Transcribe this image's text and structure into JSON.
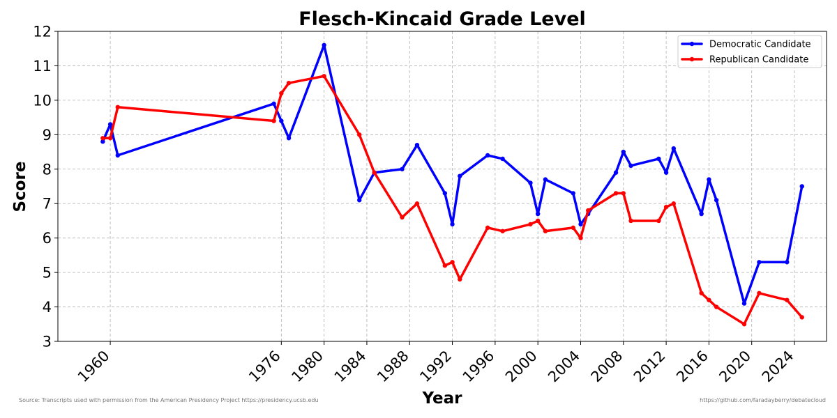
{
  "footer": {
    "source": "Source: Transcripts used with permission from the American Presidency Project https://presidency.ucsb.edu",
    "repo": "https://github.com/faradayberry/debatecloud"
  },
  "chart_data": {
    "type": "line",
    "title": "Flesch-Kincaid Grade Level",
    "xlabel": "Year",
    "ylabel": "Score",
    "xlim": [
      1955.1,
      2027.0
    ],
    "ylim": [
      3,
      12
    ],
    "xticks": [
      1960,
      1976,
      1980,
      1984,
      1988,
      1992,
      1996,
      2000,
      2004,
      2008,
      2012,
      2016,
      2020,
      2024
    ],
    "yticks": [
      3,
      4,
      5,
      6,
      7,
      8,
      9,
      10,
      11,
      12
    ],
    "grid": true,
    "legend_position": "top-right",
    "series": [
      {
        "name": "Democratic Candidate",
        "color": "#0000ff",
        "points": [
          [
            1959.3,
            8.8
          ],
          [
            1960.0,
            9.3
          ],
          [
            1960.7,
            8.4
          ],
          [
            1975.3,
            9.9
          ],
          [
            1976.0,
            9.4
          ],
          [
            1976.7,
            8.9
          ],
          [
            1980.0,
            11.6
          ],
          [
            1983.3,
            7.1
          ],
          [
            1984.7,
            7.9
          ],
          [
            1987.3,
            8.0
          ],
          [
            1988.7,
            8.7
          ],
          [
            1991.3,
            7.3
          ],
          [
            1992.0,
            6.4
          ],
          [
            1992.7,
            7.8
          ],
          [
            1995.3,
            8.4
          ],
          [
            1996.7,
            8.3
          ],
          [
            1999.3,
            7.6
          ],
          [
            2000.0,
            6.7
          ],
          [
            2000.7,
            7.7
          ],
          [
            2003.3,
            7.3
          ],
          [
            2004.0,
            6.4
          ],
          [
            2004.7,
            6.7
          ],
          [
            2007.3,
            7.9
          ],
          [
            2008.0,
            8.5
          ],
          [
            2008.7,
            8.1
          ],
          [
            2011.3,
            8.3
          ],
          [
            2012.0,
            7.9
          ],
          [
            2012.7,
            8.6
          ],
          [
            2015.3,
            6.7
          ],
          [
            2016.0,
            7.7
          ],
          [
            2016.7,
            7.1
          ],
          [
            2019.3,
            4.1
          ],
          [
            2020.7,
            5.3
          ],
          [
            2023.3,
            5.3
          ],
          [
            2024.7,
            7.5
          ]
        ]
      },
      {
        "name": "Republican Candidate",
        "color": "#ff0000",
        "points": [
          [
            1959.3,
            8.9
          ],
          [
            1960.0,
            8.9
          ],
          [
            1960.7,
            9.8
          ],
          [
            1975.3,
            9.4
          ],
          [
            1976.0,
            10.2
          ],
          [
            1976.7,
            10.5
          ],
          [
            1980.0,
            10.7
          ],
          [
            1983.3,
            9.0
          ],
          [
            1984.7,
            7.9
          ],
          [
            1987.3,
            6.6
          ],
          [
            1988.7,
            7.0
          ],
          [
            1991.3,
            5.2
          ],
          [
            1992.0,
            5.3
          ],
          [
            1992.7,
            4.8
          ],
          [
            1995.3,
            6.3
          ],
          [
            1996.7,
            6.2
          ],
          [
            1999.3,
            6.4
          ],
          [
            2000.0,
            6.5
          ],
          [
            2000.7,
            6.2
          ],
          [
            2003.3,
            6.3
          ],
          [
            2004.0,
            6.0
          ],
          [
            2004.7,
            6.8
          ],
          [
            2007.3,
            7.3
          ],
          [
            2008.0,
            7.3
          ],
          [
            2008.7,
            6.5
          ],
          [
            2011.3,
            6.5
          ],
          [
            2012.0,
            6.9
          ],
          [
            2012.7,
            7.0
          ],
          [
            2015.3,
            4.4
          ],
          [
            2016.0,
            4.2
          ],
          [
            2016.7,
            4.0
          ],
          [
            2019.3,
            3.5
          ],
          [
            2020.7,
            4.4
          ],
          [
            2023.3,
            4.2
          ],
          [
            2024.7,
            3.7
          ]
        ]
      }
    ]
  }
}
